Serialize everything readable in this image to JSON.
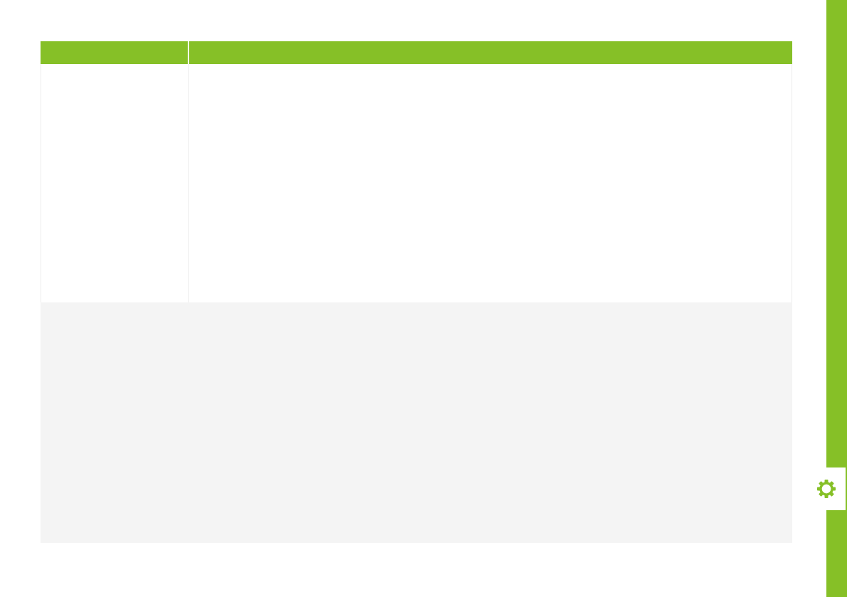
{
  "colors": {
    "accent": "#86c027",
    "panel": "#f4f4f4",
    "border": "#ececec"
  },
  "side_tab": {
    "icon": "gear-icon"
  }
}
